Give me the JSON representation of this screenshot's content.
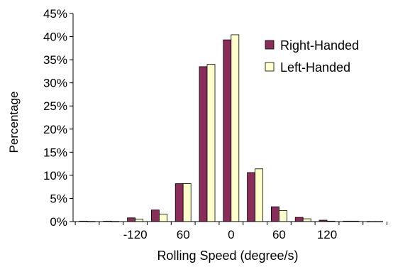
{
  "chart_data": {
    "type": "bar",
    "title": "",
    "xlabel": "Rolling Speed (degree/s)",
    "ylabel": "Percentage",
    "ylim": [
      0,
      45
    ],
    "y_ticks": [
      "0%",
      "5%",
      "10%",
      "15%",
      "20%",
      "25%",
      "30%",
      "35%",
      "40%",
      "45%"
    ],
    "x_tick_labels": [
      "-120",
      "60",
      "0",
      "60",
      "120"
    ],
    "bin_count": 13,
    "grid": false,
    "legend_position": "right",
    "series": [
      {
        "name": "Right-Handed",
        "color": "#8B2D5A",
        "values": [
          0.1,
          0.1,
          0.8,
          2.5,
          8.2,
          33.5,
          39.3,
          10.6,
          3.2,
          0.9,
          0.3,
          0.1,
          0.0
        ]
      },
      {
        "name": "Left-Handed",
        "color": "#FFFFCC",
        "values": [
          0.0,
          0.0,
          0.5,
          1.6,
          8.2,
          34.0,
          40.4,
          11.4,
          2.4,
          0.6,
          0.1,
          0.1,
          0.0
        ]
      }
    ]
  }
}
